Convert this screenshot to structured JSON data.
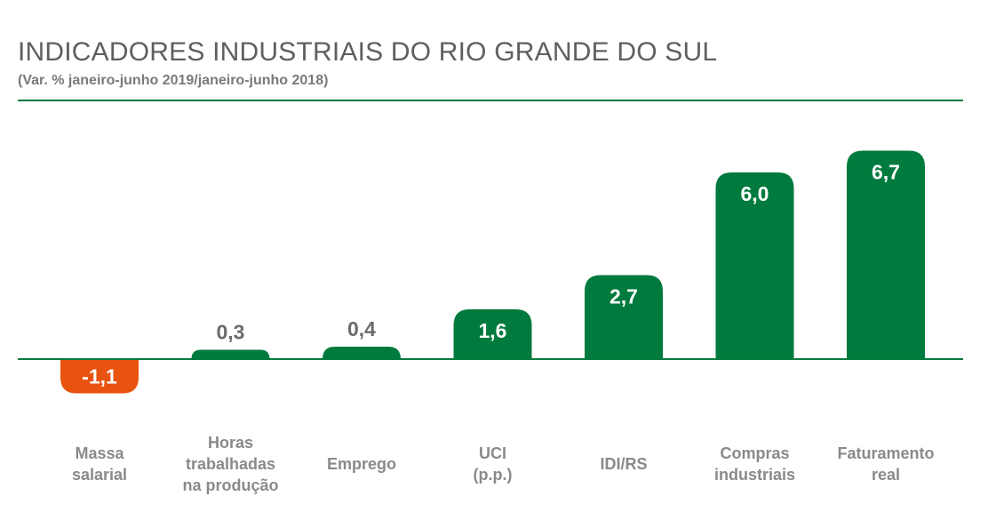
{
  "chart_data": {
    "type": "bar",
    "title": "INDICADORES INDUSTRIAIS DO RIO GRANDE DO SUL",
    "subtitle": "(Var. % janeiro-junho 2019/janeiro-junho 2018)",
    "categories": [
      [
        "Massa",
        "salarial"
      ],
      [
        "Horas",
        "trabalhadas",
        "na produção"
      ],
      [
        "Emprego"
      ],
      [
        "UCI",
        "(p.p.)"
      ],
      [
        "IDI/RS"
      ],
      [
        "Compras",
        "industriais"
      ],
      [
        "Faturamento",
        "real"
      ]
    ],
    "values": [
      -1.1,
      0.3,
      0.4,
      1.6,
      2.7,
      6.0,
      6.7
    ],
    "value_labels": [
      "-1,1",
      "0,3",
      "0,4",
      "1,6",
      "2,7",
      "6,0",
      "6,7"
    ],
    "colors": {
      "positive": "#007a3d",
      "negative": "#e8530f",
      "label_dark": "#6b6b6b",
      "label_light": "#ffffff",
      "category": "#8a8a8a"
    },
    "grid": false,
    "legend": "none"
  }
}
